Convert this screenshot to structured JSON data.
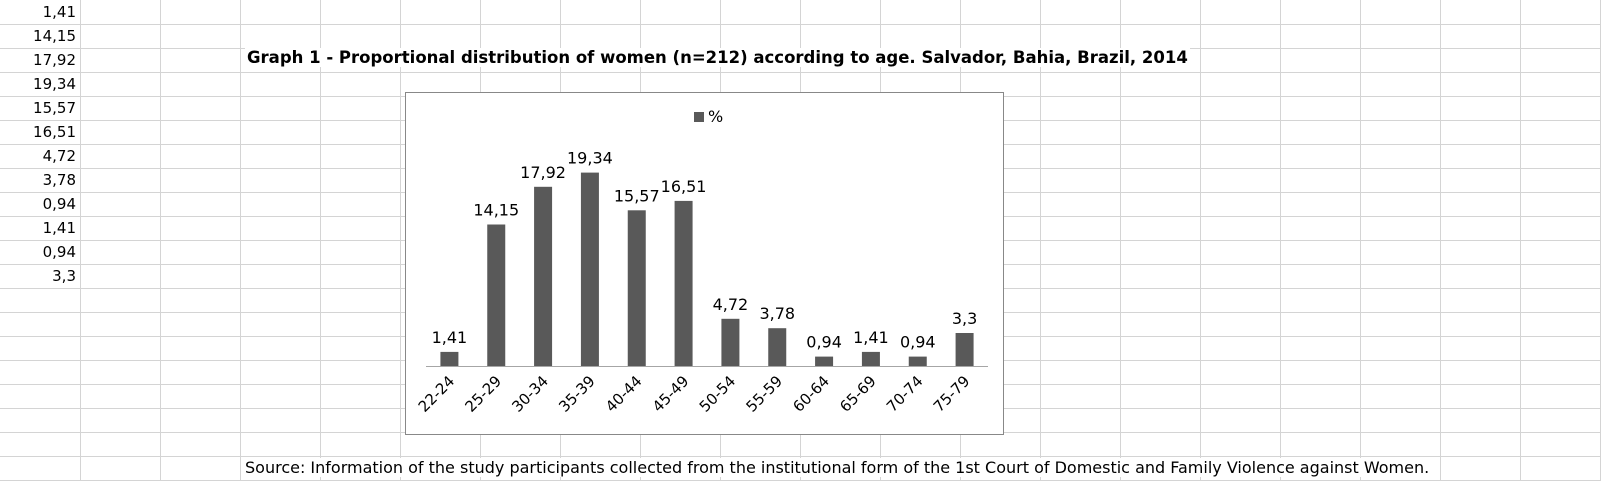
{
  "sheet": {
    "column_a_values": [
      "1,41",
      "14,15",
      "17,92",
      "19,34",
      "15,57",
      "16,51",
      "4,72",
      "3,78",
      "0,94",
      "1,41",
      "0,94",
      "3,3"
    ],
    "title": "Graph 1 - Proportional distribution of women (n=212) according to age. Salvador, Bahia, Brazil, 2014",
    "source": "Source: Information of the study participants collected from the institutional form of the 1st Court of Domestic and Family Violence against Women."
  },
  "colors": {
    "bar": "#595959",
    "gridline": "#d4d4d4",
    "chart_border": "#888888"
  },
  "chart_data": {
    "type": "bar",
    "categories": [
      "22-24",
      "25-29",
      "30-34",
      "35-39",
      "40-44",
      "45-49",
      "50-54",
      "55-59",
      "60-64",
      "65-69",
      "70-74",
      "75-79"
    ],
    "series": [
      {
        "name": "%",
        "values": [
          1.41,
          14.15,
          17.92,
          19.34,
          15.57,
          16.51,
          4.72,
          3.78,
          0.94,
          1.41,
          0.94,
          3.3
        ],
        "labels": [
          "1,41",
          "14,15",
          "17,92",
          "19,34",
          "15,57",
          "16,51",
          "4,72",
          "3,78",
          "0,94",
          "1,41",
          "0,94",
          "3,3"
        ]
      }
    ],
    "legend": {
      "position": "top",
      "label": "%"
    },
    "ylim": [
      0,
      20
    ],
    "grid": false,
    "xlabel": "",
    "ylabel": ""
  }
}
